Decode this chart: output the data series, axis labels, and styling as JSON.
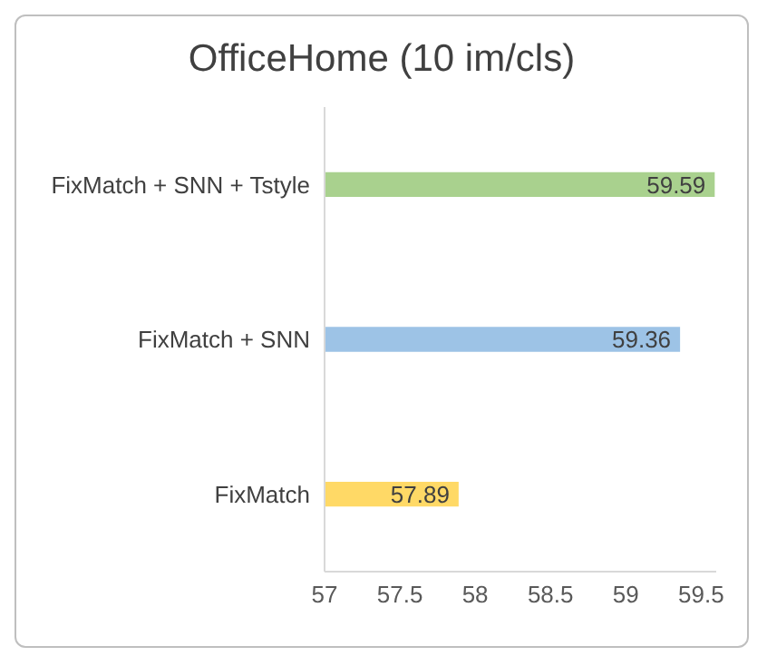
{
  "chart_data": {
    "type": "bar",
    "orientation": "horizontal",
    "title": "OfficeHome (10 im/cls)",
    "categories": [
      "FixMatch + SNN + Tstyle",
      "FixMatch + SNN",
      "FixMatch"
    ],
    "values": [
      59.59,
      59.36,
      57.89
    ],
    "colors": [
      "#a9d18e",
      "#9dc3e6",
      "#ffd966"
    ],
    "xlim": [
      57,
      59.6
    ],
    "xticks": [
      57,
      57.5,
      58,
      58.5,
      59,
      59.5
    ],
    "data_labels": true
  }
}
